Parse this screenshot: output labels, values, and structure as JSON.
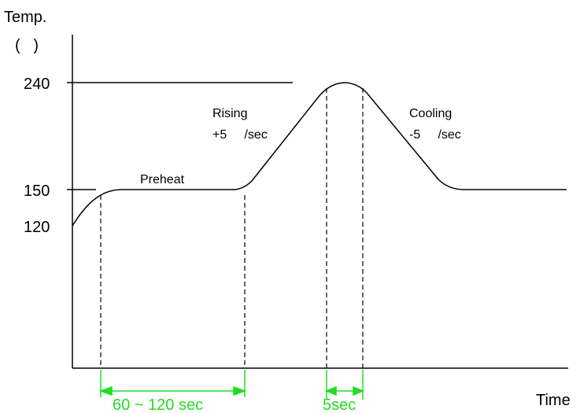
{
  "axis": {
    "y_title": "Temp.",
    "y_unit": "(   )",
    "x_title": "Time"
  },
  "y_ticks": [
    "240",
    "150",
    "120"
  ],
  "stages": {
    "preheat": "Preheat",
    "rising": "Rising",
    "rising_rate": "+5     /sec",
    "cooling": "Cooling",
    "cooling_rate": "-5     /sec"
  },
  "dimensions": {
    "preheat_duration": "60 ~ 120 sec",
    "peak_duration": "5sec"
  },
  "colors": {
    "curve": "#000000",
    "dimension": "#22dd22"
  }
}
